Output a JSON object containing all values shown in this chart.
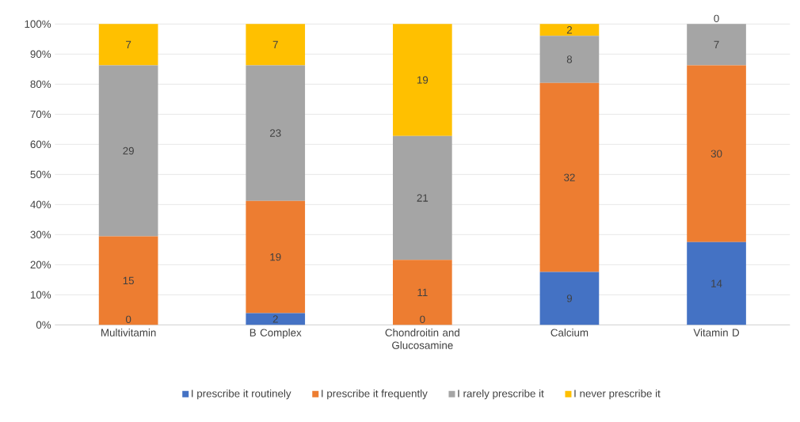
{
  "chart_data": {
    "type": "bar",
    "stacked": true,
    "categories": [
      "Multivitamin",
      "B Complex",
      "Chondroitin and Glucosamine",
      "Calcium",
      "Vitamin D"
    ],
    "series": [
      {
        "name": "I prescribe it routinely",
        "color": "#4472c4",
        "values": [
          0,
          3.9,
          0,
          17.6,
          27.5
        ]
      },
      {
        "name": "I prescribe it frequently",
        "color": "#ed7d31",
        "values": [
          29.4,
          37.3,
          21.6,
          62.8,
          58.8
        ]
      },
      {
        "name": "I rarely prescribe it",
        "color": "#a5a5a5",
        "values": [
          56.9,
          45.1,
          41.2,
          15.7,
          13.7
        ]
      },
      {
        "name": "I never prescribe it",
        "color": "#ffc000",
        "values": [
          13.7,
          13.7,
          37.2,
          3.9,
          0
        ]
      }
    ],
    "annotations": [
      "0",
      "15",
      "29",
      "7",
      "2",
      "19",
      "23",
      "7",
      "0",
      "11",
      "21",
      "19",
      "9",
      "32",
      "8",
      "2",
      "14",
      "30",
      "7",
      "0"
    ],
    "ylim": [
      0,
      100
    ],
    "yticks": [
      {
        "value": 0,
        "label": "0%"
      },
      {
        "value": 10,
        "label": "10%"
      },
      {
        "value": 20,
        "label": "20%"
      },
      {
        "value": 30,
        "label": "30%"
      },
      {
        "value": 40,
        "label": "40%"
      },
      {
        "value": 50,
        "label": "50%"
      },
      {
        "value": 60,
        "label": "60%"
      },
      {
        "value": 70,
        "label": "70%"
      },
      {
        "value": 80,
        "label": "80%"
      },
      {
        "value": 90,
        "label": "90%"
      },
      {
        "value": 100,
        "label": "100%"
      }
    ],
    "grid": "y",
    "legend": "bottom"
  }
}
